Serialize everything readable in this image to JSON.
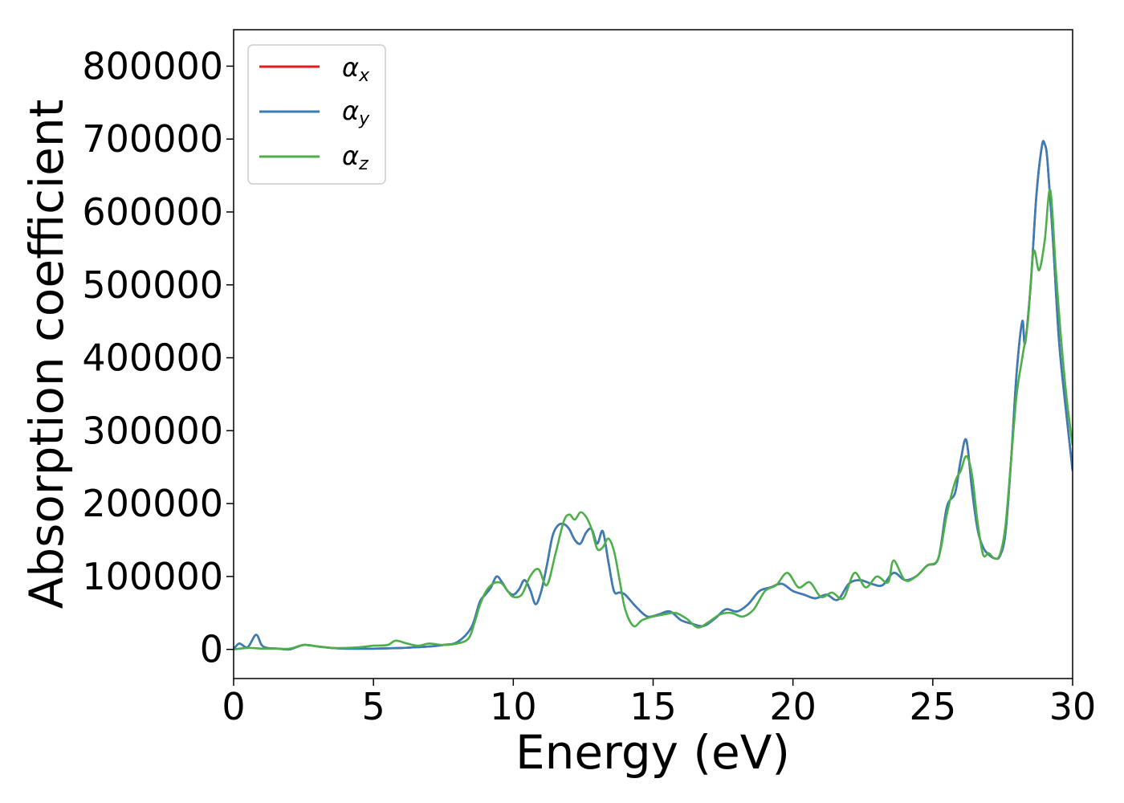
{
  "chart_data": {
    "type": "line",
    "title": "",
    "xlabel": "Energy (eV)",
    "ylabel": "Absorption coefficient",
    "xlim": [
      0,
      30
    ],
    "ylim": [
      -40000,
      850000
    ],
    "xticks": [
      "0",
      "5",
      "10",
      "15",
      "20",
      "25",
      "30"
    ],
    "yticks": [
      "0",
      "100000",
      "200000",
      "300000",
      "400000",
      "500000",
      "600000",
      "700000",
      "800000"
    ],
    "grid": false,
    "legend_position": "top-left",
    "legend": [
      {
        "symbol": "α",
        "sub": "x"
      },
      {
        "symbol": "α",
        "sub": "y"
      },
      {
        "symbol": "α",
        "sub": "z"
      }
    ],
    "series": [
      {
        "name": "αx",
        "color": "#e41a1c",
        "x": [
          0,
          0.2,
          0.5,
          0.8,
          1.0,
          1.2,
          1.6,
          2.0,
          2.5,
          3.0,
          3.5,
          4.0,
          5.0,
          6.0,
          7.0,
          7.5,
          8.0,
          8.5,
          8.8,
          9.0,
          9.2,
          9.4,
          9.6,
          9.8,
          10.0,
          10.2,
          10.4,
          10.6,
          10.8,
          11.0,
          11.2,
          11.4,
          11.6,
          11.8,
          12.0,
          12.2,
          12.4,
          12.6,
          12.8,
          13.0,
          13.2,
          13.4,
          13.6,
          13.8,
          14.0,
          14.4,
          14.8,
          15.2,
          15.6,
          16.0,
          16.4,
          16.8,
          17.2,
          17.6,
          18.0,
          18.4,
          18.8,
          19.2,
          19.6,
          20.0,
          20.4,
          20.8,
          21.2,
          21.6,
          22.0,
          22.4,
          22.8,
          23.2,
          23.6,
          24.0,
          24.4,
          24.8,
          25.2,
          25.5,
          25.8,
          26.0,
          26.2,
          26.4,
          26.6,
          26.8,
          27.0,
          27.2,
          27.4,
          27.6,
          27.8,
          28.0,
          28.2,
          28.3,
          28.5,
          28.7,
          28.9,
          29.0,
          29.1,
          29.3,
          29.5,
          29.7,
          30.0
        ],
        "y": [
          0,
          8000,
          3000,
          20000,
          6000,
          2000,
          1000,
          0,
          6000,
          4000,
          2000,
          1000,
          1000,
          2000,
          4000,
          6000,
          10000,
          30000,
          65000,
          75000,
          85000,
          100000,
          92000,
          80000,
          75000,
          82000,
          95000,
          82000,
          62000,
          80000,
          115000,
          155000,
          170000,
          172000,
          165000,
          150000,
          145000,
          160000,
          165000,
          145000,
          162000,
          120000,
          80000,
          78000,
          75000,
          58000,
          45000,
          48000,
          52000,
          40000,
          35000,
          32000,
          42000,
          55000,
          52000,
          62000,
          80000,
          85000,
          90000,
          80000,
          75000,
          70000,
          75000,
          68000,
          90000,
          95000,
          90000,
          88000,
          105000,
          95000,
          100000,
          115000,
          125000,
          195000,
          215000,
          260000,
          287000,
          220000,
          165000,
          140000,
          130000,
          125000,
          128000,
          160000,
          260000,
          380000,
          450000,
          420000,
          500000,
          620000,
          690000,
          693000,
          670000,
          560000,
          430000,
          350000,
          245000
        ]
      },
      {
        "name": "αy",
        "color": "#377eb8",
        "x": [
          0,
          0.2,
          0.5,
          0.8,
          1.0,
          1.2,
          1.6,
          2.0,
          2.5,
          3.0,
          3.5,
          4.0,
          5.0,
          6.0,
          7.0,
          7.5,
          8.0,
          8.5,
          8.8,
          9.0,
          9.2,
          9.4,
          9.6,
          9.8,
          10.0,
          10.2,
          10.4,
          10.6,
          10.8,
          11.0,
          11.2,
          11.4,
          11.6,
          11.8,
          12.0,
          12.2,
          12.4,
          12.6,
          12.8,
          13.0,
          13.2,
          13.4,
          13.6,
          13.8,
          14.0,
          14.4,
          14.8,
          15.2,
          15.6,
          16.0,
          16.4,
          16.8,
          17.2,
          17.6,
          18.0,
          18.4,
          18.8,
          19.2,
          19.6,
          20.0,
          20.4,
          20.8,
          21.2,
          21.6,
          22.0,
          22.4,
          22.8,
          23.2,
          23.6,
          24.0,
          24.4,
          24.8,
          25.2,
          25.5,
          25.8,
          26.0,
          26.2,
          26.4,
          26.6,
          26.8,
          27.0,
          27.2,
          27.4,
          27.6,
          27.8,
          28.0,
          28.2,
          28.3,
          28.5,
          28.7,
          28.9,
          29.0,
          29.1,
          29.3,
          29.5,
          29.7,
          30.0
        ],
        "y": [
          0,
          8000,
          3000,
          20000,
          6000,
          2000,
          1000,
          0,
          6000,
          4000,
          2000,
          1000,
          1000,
          2000,
          4000,
          6000,
          10000,
          30000,
          65000,
          75000,
          85000,
          100000,
          92000,
          80000,
          75000,
          82000,
          95000,
          82000,
          62000,
          80000,
          115000,
          155000,
          170000,
          172000,
          165000,
          150000,
          145000,
          160000,
          165000,
          145000,
          162000,
          120000,
          80000,
          78000,
          75000,
          58000,
          45000,
          48000,
          52000,
          40000,
          35000,
          32000,
          42000,
          55000,
          52000,
          62000,
          80000,
          85000,
          90000,
          80000,
          75000,
          70000,
          75000,
          68000,
          90000,
          95000,
          90000,
          88000,
          105000,
          95000,
          100000,
          115000,
          125000,
          195000,
          215000,
          260000,
          287000,
          220000,
          165000,
          140000,
          130000,
          125000,
          128000,
          160000,
          260000,
          380000,
          450000,
          420000,
          500000,
          620000,
          690000,
          693000,
          670000,
          560000,
          430000,
          350000,
          245000
        ]
      },
      {
        "name": "αz",
        "color": "#4daf4a",
        "x": [
          0,
          0.5,
          1.0,
          1.5,
          2.0,
          2.5,
          3.0,
          3.5,
          4.0,
          4.5,
          5.0,
          5.5,
          5.8,
          6.2,
          6.6,
          7.0,
          7.5,
          8.0,
          8.4,
          8.6,
          8.8,
          9.0,
          9.2,
          9.4,
          9.6,
          9.8,
          10.0,
          10.3,
          10.6,
          10.9,
          11.2,
          11.5,
          11.8,
          12.0,
          12.2,
          12.4,
          12.6,
          12.8,
          13.0,
          13.2,
          13.4,
          13.6,
          13.8,
          14.0,
          14.3,
          14.6,
          15.0,
          15.4,
          15.8,
          16.2,
          16.6,
          17.0,
          17.4,
          17.8,
          18.2,
          18.6,
          19.0,
          19.4,
          19.8,
          20.2,
          20.6,
          21.0,
          21.4,
          21.8,
          22.2,
          22.6,
          23.0,
          23.4,
          23.6,
          24.0,
          24.4,
          24.8,
          25.2,
          25.5,
          25.8,
          26.0,
          26.2,
          26.4,
          26.6,
          26.8,
          27.0,
          27.2,
          27.4,
          27.6,
          27.8,
          28.0,
          28.2,
          28.4,
          28.6,
          28.8,
          29.0,
          29.2,
          29.4,
          29.6,
          29.8,
          30.0
        ],
        "y": [
          0,
          2000,
          1000,
          1000,
          1000,
          6000,
          4000,
          2000,
          2000,
          3000,
          5000,
          6000,
          12000,
          8000,
          5000,
          8000,
          6000,
          8000,
          15000,
          35000,
          60000,
          78000,
          88000,
          92000,
          90000,
          80000,
          72000,
          75000,
          100000,
          110000,
          88000,
          130000,
          175000,
          185000,
          178000,
          188000,
          182000,
          165000,
          138000,
          140000,
          152000,
          135000,
          95000,
          55000,
          32000,
          40000,
          45000,
          48000,
          50000,
          42000,
          30000,
          38000,
          48000,
          50000,
          45000,
          55000,
          80000,
          88000,
          105000,
          85000,
          92000,
          72000,
          78000,
          70000,
          105000,
          85000,
          100000,
          92000,
          122000,
          95000,
          100000,
          115000,
          125000,
          185000,
          230000,
          245000,
          265000,
          240000,
          175000,
          130000,
          132000,
          125000,
          130000,
          170000,
          260000,
          350000,
          400000,
          450000,
          545000,
          520000,
          560000,
          630000,
          520000,
          420000,
          340000,
          280000
        ]
      }
    ]
  }
}
